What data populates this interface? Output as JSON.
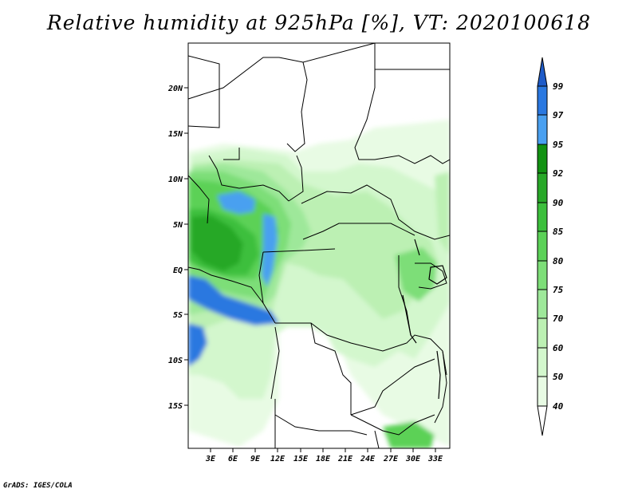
{
  "title": "Relative humidity at 925hPa [%], VT: 2020100618",
  "credit": "GrADS: IGES/COLA",
  "map": {
    "lat_labels": [
      "20N",
      "15N",
      "10N",
      "5N",
      "EQ",
      "5S",
      "10S",
      "15S"
    ],
    "lon_labels": [
      "3E",
      "6E",
      "9E",
      "12E",
      "15E",
      "18E",
      "21E",
      "24E",
      "27E",
      "30E",
      "33E"
    ]
  },
  "legend": {
    "levels": [
      "40",
      "50",
      "60",
      "70",
      "75",
      "80",
      "85",
      "90",
      "92",
      "95",
      "97",
      "99"
    ],
    "colors": [
      "#ffffff",
      "#e8fbe4",
      "#d3f7cd",
      "#bcf0b3",
      "#9ee89a",
      "#7dde78",
      "#5bd157",
      "#3cbf3c",
      "#28a828",
      "#129212",
      "#4aa0f0",
      "#2a78e0",
      "#1e5bc8"
    ]
  }
}
